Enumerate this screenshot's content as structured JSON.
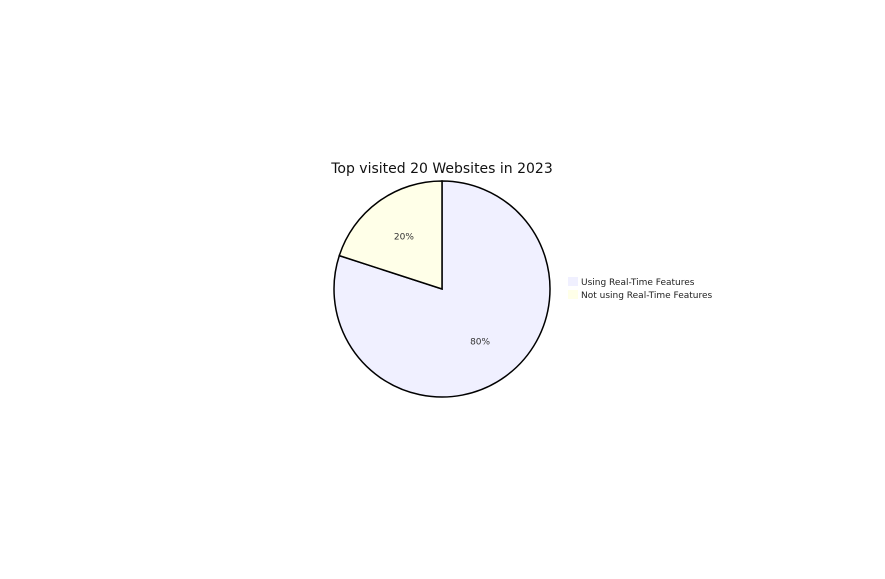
{
  "chart_data": {
    "type": "pie",
    "title": "Top visited 20 Websites in 2023",
    "slices": [
      {
        "name": "Using Real-Time Features",
        "value": 80,
        "label": "80%",
        "color": "#f0f0ff"
      },
      {
        "name": "Not using Real-Time Features",
        "value": 20,
        "label": "20%",
        "color": "#ffffe8"
      }
    ],
    "start_angle_deg": 0,
    "direction": "clockwise",
    "stroke_color": "#000000",
    "legend_position": "right"
  }
}
